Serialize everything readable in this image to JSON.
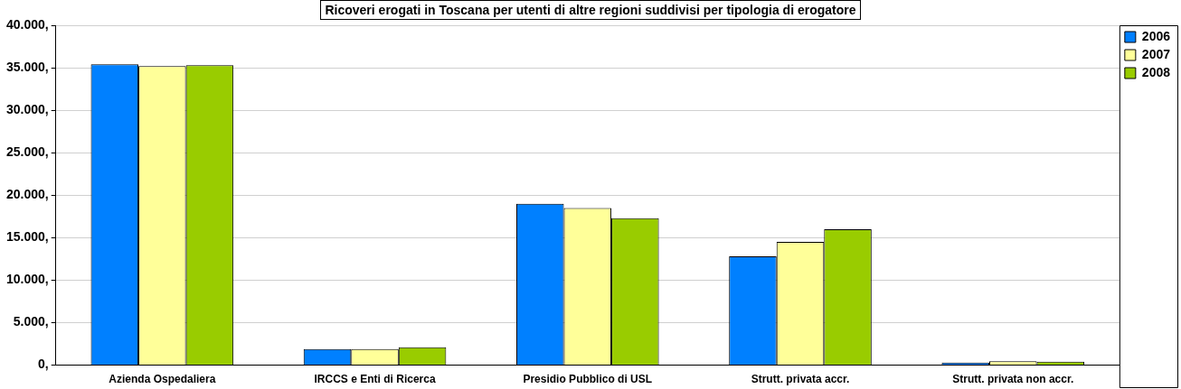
{
  "chart_data": {
    "type": "bar",
    "title": "Ricoveri erogati in Toscana per utenti di altre regioni suddivisi per tipologia di erogatore",
    "categories": [
      "Azienda Ospedaliera",
      "IRCCS e Enti di Ricerca",
      "Presidio Pubblico di USL",
      "Strutt. privata accr.",
      "Strutt. privata non accr."
    ],
    "series": [
      {
        "name": "2006",
        "color": "#0080ff",
        "values": [
          35400,
          1900,
          19000,
          12800,
          300
        ]
      },
      {
        "name": "2007",
        "color": "#ffff99",
        "values": [
          35200,
          1900,
          18500,
          14500,
          450
        ]
      },
      {
        "name": "2008",
        "color": "#99cc00",
        "values": [
          35300,
          2100,
          17300,
          16000,
          400
        ]
      }
    ],
    "ylim": [
      0,
      40000
    ],
    "yticks": [
      {
        "value": 0,
        "label": "0,"
      },
      {
        "value": 5000,
        "label": "5.000,"
      },
      {
        "value": 10000,
        "label": "10.000,"
      },
      {
        "value": 15000,
        "label": "15.000,"
      },
      {
        "value": 20000,
        "label": "20.000,"
      },
      {
        "value": 25000,
        "label": "25.000,"
      },
      {
        "value": 30000,
        "label": "30.000,"
      },
      {
        "value": 35000,
        "label": "35.000,"
      },
      {
        "value": 40000,
        "label": "40.000,"
      }
    ],
    "grid": "y",
    "legend": "top right"
  }
}
